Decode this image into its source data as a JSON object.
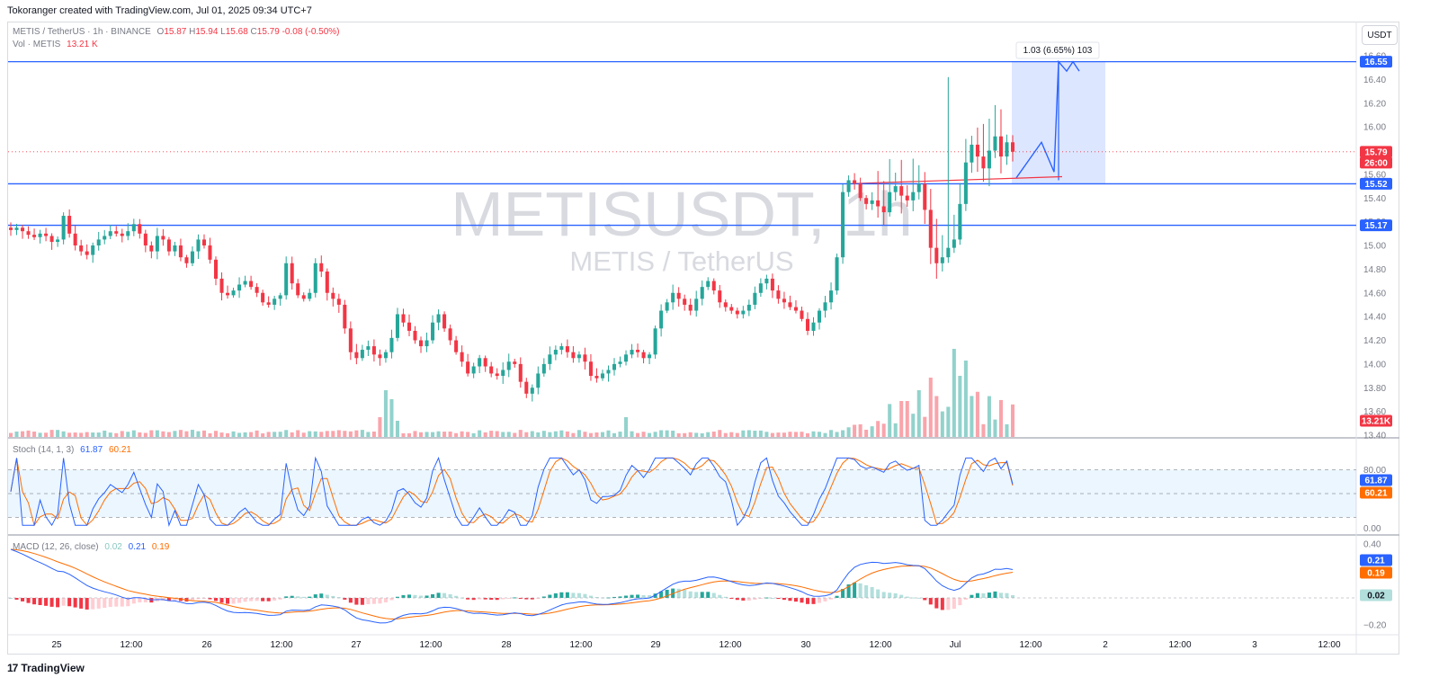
{
  "header": {
    "credit": "Tokoranger created with TradingView.com, Jul 01, 2025 09:34 UTC+7"
  },
  "legend": {
    "symbol": "METIS / TetherUS · 1h · BINANCE",
    "o_label": "O",
    "o": "15.87",
    "h_label": "H",
    "h": "15.94",
    "l_label": "L",
    "l": "15.68",
    "c_label": "C",
    "c": "15.79",
    "change": "-0.08 (-0.50%)",
    "vol_label": "Vol · METIS",
    "vol": "13.21 K"
  },
  "currency_button": "USDT",
  "watermark": {
    "ticker": "METISUSDT, 1h",
    "name": "METIS / TetherUS"
  },
  "stoch_legend": {
    "label": "Stoch (14, 1, 3)",
    "k": "61.87",
    "d": "60.21"
  },
  "macd_legend": {
    "label": "MACD (12, 26, close)",
    "hist": "0.02",
    "macd": "0.21",
    "signal": "0.19"
  },
  "projection_label": "1.03 (6.65%) 103",
  "brand": "TradingView",
  "colors": {
    "up": "#26a69a",
    "down": "#f23645",
    "level": "#2962ff",
    "stoch_k": "#2962ff",
    "stoch_d": "#ff6d00",
    "macd": "#2962ff",
    "signal": "#ff6d00"
  },
  "chart_data": [
    {
      "type": "candlestick",
      "title": "METISUSDT, 1h",
      "ylim": [
        13.4,
        16.6
      ],
      "y_ticks": [
        "16.60",
        "16.40",
        "16.20",
        "16.00",
        "15.80",
        "15.60",
        "15.40",
        "15.20",
        "15.00",
        "14.80",
        "14.60",
        "14.40",
        "14.20",
        "14.00",
        "13.80",
        "13.60",
        "13.40"
      ],
      "x_ticks": [
        "25",
        "12:00",
        "26",
        "12:00",
        "27",
        "12:00",
        "28",
        "12:00",
        "29",
        "12:00",
        "30",
        "12:00",
        "Jul",
        "12:00",
        "2",
        "12:00",
        "3",
        "12:00"
      ],
      "horizontal_levels": [
        16.55,
        15.52,
        15.17
      ],
      "price_labels": {
        "top": "16.55",
        "last": "15.79",
        "countdown": "26:00",
        "mid": "15.52",
        "low": "15.17",
        "volume": "13.21K"
      },
      "close_series": [
        15.13,
        15.15,
        15.12,
        15.09,
        15.07,
        15.1,
        15.08,
        15.03,
        15.05,
        15.25,
        15.1,
        15.0,
        14.95,
        14.92,
        15.0,
        15.05,
        15.08,
        15.12,
        15.1,
        15.08,
        15.12,
        15.18,
        15.1,
        15.0,
        14.95,
        15.08,
        15.05,
        14.95,
        15.0,
        14.9,
        14.85,
        14.95,
        15.05,
        15.0,
        14.88,
        14.72,
        14.6,
        14.58,
        14.62,
        14.67,
        14.7,
        14.65,
        14.6,
        14.52,
        14.5,
        14.55,
        14.58,
        14.85,
        14.68,
        14.58,
        14.55,
        14.6,
        14.85,
        14.78,
        14.6,
        14.55,
        14.5,
        14.3,
        14.1,
        14.05,
        14.12,
        14.15,
        14.08,
        14.05,
        14.1,
        14.22,
        14.42,
        14.35,
        14.28,
        14.2,
        14.15,
        14.2,
        14.35,
        14.42,
        14.3,
        14.2,
        14.1,
        14.02,
        13.92,
        13.98,
        14.05,
        13.98,
        13.92,
        13.9,
        13.95,
        14.02,
        14.0,
        13.85,
        13.75,
        13.8,
        13.92,
        14.0,
        14.08,
        14.12,
        14.15,
        14.1,
        14.05,
        14.08,
        14.02,
        13.9,
        13.88,
        13.92,
        13.95,
        14.0,
        14.02,
        14.08,
        14.12,
        14.1,
        14.05,
        14.08,
        14.3,
        14.45,
        14.52,
        14.6,
        14.55,
        14.5,
        14.45,
        14.55,
        14.65,
        14.7,
        14.62,
        14.52,
        14.48,
        14.45,
        14.42,
        14.45,
        14.5,
        14.6,
        14.68,
        14.72,
        14.62,
        14.55,
        14.52,
        14.48,
        14.45,
        14.38,
        14.28,
        14.35,
        14.45,
        14.52,
        14.62,
        14.9,
        15.45,
        15.55,
        15.52,
        15.4,
        15.35,
        15.38,
        15.33,
        15.28,
        15.45,
        15.5,
        15.42,
        15.38,
        15.45,
        15.52,
        15.3,
        14.98,
        14.85,
        14.9,
        14.98,
        15.05,
        15.35,
        15.7,
        15.85,
        15.75,
        15.65,
        15.8,
        15.92,
        15.75,
        15.87,
        15.79
      ],
      "stoch_k_last": 61.87,
      "stoch_d_last": 60.21,
      "stoch_levels": [
        80,
        50,
        20
      ],
      "macd_last": 0.21,
      "signal_last": 0.19,
      "hist_last": 0.02
    }
  ]
}
